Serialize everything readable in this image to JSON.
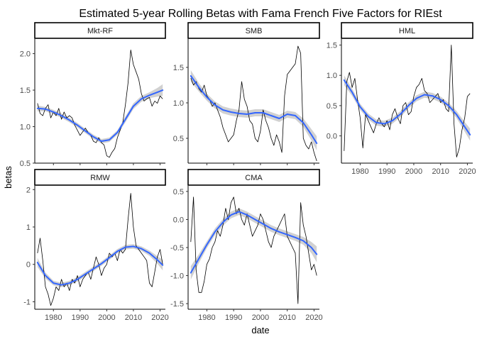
{
  "chart_data": {
    "type": "line",
    "title": "Estimated 5-year Rolling Betas with Fama French Five Factors for RIEst",
    "xlabel": "date",
    "ylabel": "betas",
    "xlim": [
      1973,
      2022
    ],
    "x_ticks": [
      1980,
      1990,
      2000,
      2010,
      2020
    ],
    "grid": false,
    "layout": "facet_wrap 3 columns, free y scales",
    "colors": {
      "raw_line": "#000000",
      "smooth_line": "#3366FF",
      "ribbon": "#999999",
      "axis": "#000000",
      "tick_text": "#4d4d4d"
    },
    "series_types": [
      "rolling beta (line)",
      "loess smooth with confidence band"
    ],
    "panels": [
      {
        "name": "Mkt-RF",
        "ylim": [
          0.5,
          2.2
        ],
        "y_ticks": [
          0.5,
          1.0,
          1.5,
          2.0
        ],
        "raw": {
          "x": [
            1974.0,
            1975.0,
            1976.0,
            1977.0,
            1978.0,
            1979.0,
            1980.0,
            1981.0,
            1982.0,
            1983.0,
            1984.0,
            1985.0,
            1986.0,
            1987.0,
            1988.0,
            1989.0,
            1990.0,
            1991.0,
            1992.0,
            1993.0,
            1994.0,
            1995.0,
            1996.0,
            1997.0,
            1998.0,
            1999.0,
            2000.0,
            2001.0,
            2002.0,
            2003.0,
            2004.0,
            2005.0,
            2006.0,
            2007.0,
            2008.0,
            2009.0,
            2010.0,
            2011.0,
            2012.0,
            2013.0,
            2014.0,
            2015.0,
            2016.0,
            2017.0,
            2018.0,
            2019.0,
            2020.0,
            2021.0
          ],
          "y": [
            1.32,
            1.18,
            1.15,
            1.25,
            1.3,
            1.12,
            1.2,
            1.15,
            1.25,
            1.1,
            1.2,
            1.12,
            1.15,
            1.12,
            1.02,
            0.95,
            0.88,
            0.93,
            0.98,
            0.92,
            0.88,
            0.8,
            0.78,
            0.85,
            0.78,
            0.75,
            0.6,
            0.58,
            0.65,
            0.7,
            0.85,
            0.95,
            1.05,
            1.3,
            1.6,
            2.05,
            1.85,
            1.75,
            1.65,
            1.45,
            1.35,
            1.38,
            1.4,
            1.28,
            1.35,
            1.32,
            1.42,
            1.38
          ]
        },
        "smooth": {
          "x": [
            1974,
            1977,
            1980,
            1983,
            1986,
            1989,
            1992,
            1995,
            1998,
            2001,
            2004,
            2007,
            2010,
            2013,
            2016,
            2019,
            2021
          ],
          "y": [
            1.25,
            1.24,
            1.2,
            1.15,
            1.09,
            1.02,
            0.94,
            0.86,
            0.8,
            0.82,
            0.92,
            1.1,
            1.28,
            1.38,
            1.43,
            1.47,
            1.5
          ],
          "band": [
            0.04,
            0.03,
            0.03,
            0.03,
            0.03,
            0.03,
            0.03,
            0.03,
            0.03,
            0.03,
            0.03,
            0.04,
            0.04,
            0.04,
            0.04,
            0.06,
            0.08
          ]
        }
      },
      {
        "name": "SMB",
        "ylim": [
          0.15,
          1.9
        ],
        "y_ticks": [
          0.5,
          1.0,
          1.5
        ],
        "raw": {
          "x": [
            1974.0,
            1975.0,
            1976.0,
            1977.0,
            1978.0,
            1979.0,
            1980.0,
            1981.0,
            1982.0,
            1983.0,
            1984.0,
            1985.0,
            1986.0,
            1987.0,
            1988.0,
            1989.0,
            1990.0,
            1991.0,
            1992.0,
            1993.0,
            1994.0,
            1995.0,
            1996.0,
            1997.0,
            1998.0,
            1999.0,
            2000.0,
            2001.0,
            2002.0,
            2003.0,
            2004.0,
            2005.0,
            2006.0,
            2007.0,
            2008.0,
            2009.0,
            2010.0,
            2011.0,
            2012.0,
            2013.0,
            2014.0,
            2015.0,
            2016.0,
            2017.0,
            2018.0,
            2019.0,
            2020.0,
            2021.0
          ],
          "y": [
            1.35,
            1.25,
            1.3,
            1.2,
            1.15,
            1.25,
            1.1,
            1.05,
            0.95,
            1.0,
            0.9,
            0.8,
            0.65,
            0.55,
            0.45,
            0.5,
            0.55,
            0.75,
            0.9,
            1.3,
            1.05,
            0.95,
            0.75,
            0.7,
            0.5,
            0.45,
            0.6,
            0.9,
            0.75,
            0.65,
            0.5,
            0.4,
            0.55,
            0.45,
            0.3,
            1.1,
            1.4,
            1.45,
            1.5,
            1.55,
            1.8,
            1.7,
            0.5,
            0.4,
            0.35,
            0.45,
            0.3,
            0.18
          ]
        },
        "smooth": {
          "x": [
            1974,
            1977,
            1980,
            1983,
            1986,
            1989,
            1992,
            1995,
            1998,
            2001,
            2004,
            2007,
            2010,
            2013,
            2016,
            2019,
            2021
          ],
          "y": [
            1.38,
            1.22,
            1.08,
            0.97,
            0.9,
            0.87,
            0.85,
            0.84,
            0.86,
            0.86,
            0.82,
            0.78,
            0.84,
            0.82,
            0.72,
            0.55,
            0.43
          ],
          "band": [
            0.08,
            0.06,
            0.05,
            0.05,
            0.05,
            0.05,
            0.05,
            0.05,
            0.05,
            0.05,
            0.05,
            0.05,
            0.05,
            0.05,
            0.06,
            0.08,
            0.1
          ]
        }
      },
      {
        "name": "HML",
        "ylim": [
          -0.45,
          1.6
        ],
        "y_ticks": [
          0.0,
          0.5,
          1.0,
          1.5
        ],
        "raw": {
          "x": [
            1974.0,
            1975.0,
            1976.0,
            1977.0,
            1978.0,
            1979.0,
            1980.0,
            1981.0,
            1982.0,
            1983.0,
            1984.0,
            1985.0,
            1986.0,
            1987.0,
            1988.0,
            1989.0,
            1990.0,
            1991.0,
            1992.0,
            1993.0,
            1994.0,
            1995.0,
            1996.0,
            1997.0,
            1998.0,
            1999.0,
            2000.0,
            2001.0,
            2002.0,
            2003.0,
            2004.0,
            2005.0,
            2006.0,
            2007.0,
            2008.0,
            2009.0,
            2010.0,
            2011.0,
            2012.0,
            2013.0,
            2014.0,
            2015.0,
            2016.0,
            2017.0,
            2018.0,
            2019.0,
            2020.0,
            2021.0
          ],
          "y": [
            -0.25,
            0.9,
            1.05,
            0.8,
            0.95,
            0.6,
            0.3,
            -0.2,
            0.35,
            0.25,
            0.15,
            0.05,
            0.2,
            0.3,
            0.2,
            0.15,
            0.25,
            0.1,
            0.35,
            0.45,
            0.3,
            0.2,
            0.5,
            0.55,
            0.35,
            0.4,
            0.65,
            0.8,
            0.85,
            0.95,
            0.75,
            0.7,
            0.55,
            0.6,
            0.65,
            0.7,
            0.55,
            0.6,
            0.45,
            0.4,
            1.5,
            0.2,
            -0.35,
            -0.2,
            0.1,
            0.3,
            0.65,
            0.7
          ]
        },
        "smooth": {
          "x": [
            1974,
            1977,
            1980,
            1983,
            1986,
            1989,
            1992,
            1995,
            1998,
            2001,
            2004,
            2007,
            2010,
            2013,
            2016,
            2019,
            2021
          ],
          "y": [
            0.92,
            0.72,
            0.48,
            0.32,
            0.22,
            0.2,
            0.25,
            0.36,
            0.5,
            0.62,
            0.68,
            0.66,
            0.6,
            0.5,
            0.35,
            0.15,
            0.02
          ],
          "band": [
            0.08,
            0.06,
            0.05,
            0.05,
            0.05,
            0.05,
            0.05,
            0.05,
            0.05,
            0.05,
            0.05,
            0.05,
            0.05,
            0.05,
            0.06,
            0.08,
            0.1
          ]
        }
      },
      {
        "name": "RMW",
        "ylim": [
          -1.2,
          2.1
        ],
        "y_ticks": [
          -1,
          0,
          1,
          2
        ],
        "raw": {
          "x": [
            1974.0,
            1975.0,
            1976.0,
            1977.0,
            1978.0,
            1979.0,
            1980.0,
            1981.0,
            1982.0,
            1983.0,
            1984.0,
            1985.0,
            1986.0,
            1987.0,
            1988.0,
            1989.0,
            1990.0,
            1991.0,
            1992.0,
            1993.0,
            1994.0,
            1995.0,
            1996.0,
            1997.0,
            1998.0,
            1999.0,
            2000.0,
            2001.0,
            2002.0,
            2003.0,
            2004.0,
            2005.0,
            2006.0,
            2007.0,
            2008.0,
            2009.0,
            2010.0,
            2011.0,
            2012.0,
            2013.0,
            2014.0,
            2015.0,
            2016.0,
            2017.0,
            2018.0,
            2019.0,
            2020.0,
            2021.0
          ],
          "y": [
            0.3,
            0.7,
            0.1,
            -0.6,
            -0.8,
            -1.1,
            -0.9,
            -0.6,
            -0.7,
            -0.4,
            -0.6,
            -0.5,
            -0.7,
            -0.4,
            -0.5,
            -0.3,
            -0.6,
            -0.4,
            -0.3,
            -0.2,
            -0.4,
            -0.1,
            0.2,
            0.0,
            -0.3,
            -0.1,
            0.0,
            0.3,
            0.2,
            0.3,
            0.1,
            0.4,
            0.3,
            0.4,
            1.2,
            1.9,
            1.0,
            0.5,
            0.4,
            0.3,
            0.2,
            0.1,
            -0.5,
            -0.6,
            -0.2,
            0.2,
            0.4,
            0.0
          ]
        },
        "smooth": {
          "x": [
            1974,
            1977,
            1980,
            1983,
            1986,
            1989,
            1992,
            1995,
            1998,
            2001,
            2004,
            2007,
            2010,
            2013,
            2016,
            2019,
            2021
          ],
          "y": [
            0.05,
            -0.3,
            -0.5,
            -0.55,
            -0.5,
            -0.4,
            -0.26,
            -0.12,
            0.02,
            0.18,
            0.35,
            0.46,
            0.48,
            0.42,
            0.3,
            0.12,
            -0.02
          ],
          "band": [
            0.12,
            0.08,
            0.06,
            0.06,
            0.06,
            0.06,
            0.06,
            0.06,
            0.06,
            0.06,
            0.06,
            0.06,
            0.06,
            0.06,
            0.07,
            0.1,
            0.14
          ]
        }
      },
      {
        "name": "CMA",
        "ylim": [
          -1.6,
          0.6
        ],
        "y_ticks": [
          -1.5,
          -1.0,
          -0.5,
          0.0,
          0.5
        ],
        "raw": {
          "x": [
            1974.0,
            1975.0,
            1976.0,
            1977.0,
            1978.0,
            1979.0,
            1980.0,
            1981.0,
            1982.0,
            1983.0,
            1984.0,
            1985.0,
            1986.0,
            1987.0,
            1988.0,
            1989.0,
            1990.0,
            1991.0,
            1992.0,
            1993.0,
            1994.0,
            1995.0,
            1996.0,
            1997.0,
            1998.0,
            1999.0,
            2000.0,
            2001.0,
            2002.0,
            2003.0,
            2004.0,
            2005.0,
            2006.0,
            2007.0,
            2008.0,
            2009.0,
            2010.0,
            2011.0,
            2012.0,
            2013.0,
            2014.0,
            2015.0,
            2016.0,
            2017.0,
            2018.0,
            2019.0,
            2020.0,
            2021.0
          ],
          "y": [
            -0.4,
            0.4,
            -0.9,
            -1.3,
            -1.3,
            -1.1,
            -0.8,
            -0.7,
            -0.5,
            -0.4,
            -0.2,
            -0.3,
            -0.1,
            0.2,
            0.0,
            0.3,
            0.4,
            0.1,
            0.2,
            0.0,
            -0.1,
            0.1,
            -0.1,
            -0.3,
            -0.2,
            -0.1,
            0.1,
            0.0,
            -0.2,
            -0.4,
            -0.5,
            -0.3,
            -0.2,
            -0.1,
            0.0,
            0.1,
            -0.3,
            -0.4,
            -0.5,
            -0.6,
            -1.5,
            0.3,
            -0.1,
            -0.3,
            -0.6,
            -0.9,
            -0.8,
            -1.0
          ]
        },
        "smooth": {
          "x": [
            1974,
            1977,
            1980,
            1983,
            1986,
            1989,
            1992,
            1995,
            1998,
            2001,
            2004,
            2007,
            2010,
            2013,
            2016,
            2019,
            2021
          ],
          "y": [
            -0.95,
            -0.7,
            -0.45,
            -0.22,
            -0.05,
            0.08,
            0.14,
            0.08,
            0.0,
            -0.08,
            -0.16,
            -0.22,
            -0.27,
            -0.32,
            -0.38,
            -0.5,
            -0.62
          ],
          "band": [
            0.12,
            0.08,
            0.06,
            0.06,
            0.06,
            0.06,
            0.06,
            0.06,
            0.06,
            0.06,
            0.06,
            0.06,
            0.06,
            0.06,
            0.07,
            0.1,
            0.14
          ]
        }
      }
    ]
  }
}
